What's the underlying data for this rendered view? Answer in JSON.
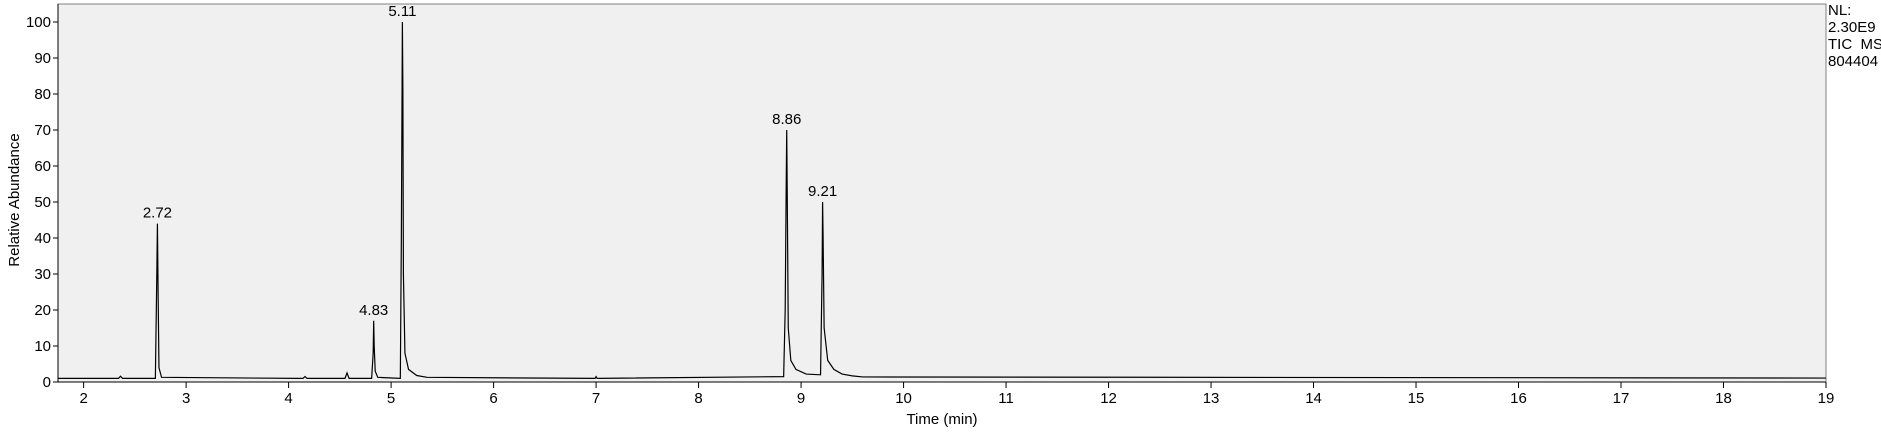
{
  "chart_data": {
    "type": "line",
    "x_label": "Time (min)",
    "y_label": "Relative Abundance",
    "annotations": [
      "NL:",
      "2.30E9",
      "TIC  MS",
      "804404"
    ],
    "x": [
      1.75,
      2.3,
      2.34,
      2.36,
      2.38,
      2.7,
      2.715,
      2.72,
      2.727,
      2.735,
      2.76,
      4.1,
      4.14,
      4.16,
      4.18,
      4.55,
      4.57,
      4.59,
      4.81,
      4.825,
      4.83,
      4.835,
      4.845,
      4.87,
      5.09,
      5.1,
      5.11,
      5.115,
      5.12,
      5.135,
      5.17,
      5.25,
      5.35,
      6.99,
      7.0,
      7.01,
      8.83,
      8.845,
      8.855,
      8.86,
      8.865,
      8.875,
      8.9,
      8.95,
      9.05,
      9.19,
      9.205,
      9.21,
      9.215,
      9.225,
      9.26,
      9.32,
      9.4,
      9.5,
      9.6,
      19
    ],
    "series": [
      {
        "name": "TIC",
        "color": "#000000",
        "values": [
          1,
          1,
          1,
          1.6,
          1,
          1,
          32,
          44,
          24,
          4,
          1.3,
          1,
          1,
          1.5,
          1,
          1,
          2.5,
          1,
          1,
          8,
          17,
          10,
          3,
          1.3,
          1,
          40,
          100,
          81,
          30,
          8,
          3.5,
          1.8,
          1.3,
          1,
          1.5,
          1,
          1.5,
          20,
          55,
          70,
          52,
          15,
          6,
          3.5,
          2.2,
          2,
          30,
          50,
          40,
          15,
          6,
          3.5,
          2.2,
          1.7,
          1.4,
          1.1
        ]
      }
    ],
    "peak_labels": [
      2.72,
      4.83,
      5.11,
      8.86,
      9.21
    ],
    "xlim": [
      1.75,
      19
    ],
    "ylim": [
      0,
      105
    ],
    "xticks": [
      2,
      3,
      4,
      5,
      6,
      7,
      8,
      9,
      10,
      11,
      12,
      13,
      14,
      15,
      16,
      17,
      18,
      19
    ],
    "yticks": [
      0,
      10,
      20,
      30,
      40,
      50,
      60,
      70,
      80,
      90,
      100
    ],
    "plot_background": "#f0f0f0"
  }
}
